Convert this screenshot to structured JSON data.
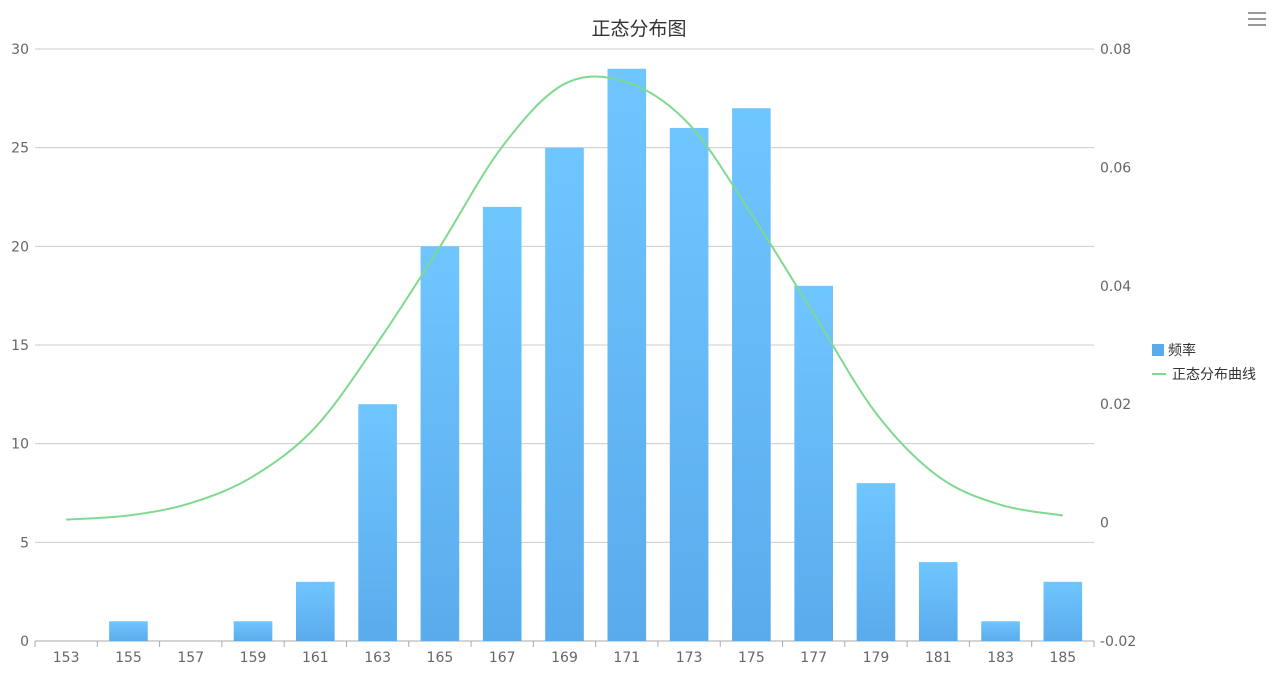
{
  "chart_data": {
    "type": "bar",
    "title": "正态分布图",
    "categories": [
      "153",
      "155",
      "157",
      "159",
      "161",
      "163",
      "165",
      "167",
      "169",
      "171",
      "173",
      "175",
      "177",
      "179",
      "181",
      "183",
      "185"
    ],
    "series": [
      {
        "name": "频率",
        "type": "bar",
        "axis": "left",
        "color": "#5aabec",
        "values": [
          0,
          1,
          0,
          1,
          3,
          12,
          20,
          22,
          25,
          29,
          26,
          27,
          18,
          8,
          4,
          1,
          3
        ]
      },
      {
        "name": "正态分布曲线",
        "type": "line",
        "axis": "right",
        "color": "#7fd98f",
        "values": [
          0.0005,
          0.0012,
          0.0033,
          0.0078,
          0.0161,
          0.0304,
          0.0466,
          0.0635,
          0.0741,
          0.0744,
          0.0673,
          0.0521,
          0.0353,
          0.0185,
          0.0078,
          0.003,
          0.0012
        ]
      }
    ],
    "y_left": {
      "range": [
        0,
        30
      ],
      "ticks": [
        "0",
        "5",
        "10",
        "15",
        "20",
        "25",
        "30"
      ]
    },
    "y_right": {
      "range": [
        -0.02,
        0.08
      ],
      "ticks": [
        "-0.02",
        "0",
        "0.02",
        "0.04",
        "0.06",
        "0.08"
      ]
    },
    "grid": true,
    "legend_position": "right"
  },
  "legend": {
    "bar_label": "频率",
    "line_label": "正态分布曲线"
  }
}
